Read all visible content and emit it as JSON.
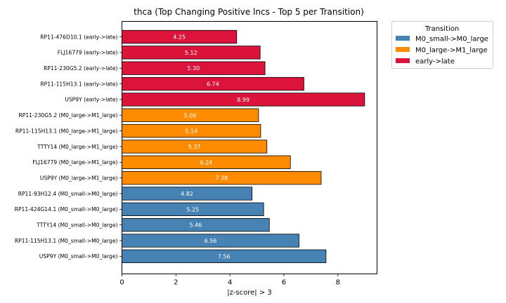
{
  "chart_data": {
    "type": "bar",
    "orientation": "horizontal",
    "title": "thca (Top Changing Positive lncs - Top 5 per Transition)",
    "xlabel": "|z-score| > 3",
    "ylabel": "",
    "xlim": [
      0,
      9.45
    ],
    "xticks": [
      0,
      2,
      4,
      6,
      8
    ],
    "grid": false,
    "legend": {
      "title": "Transition",
      "placement": "outside-top-right",
      "entries": [
        {
          "label": "M0_small->M0_large",
          "color": "#4682b4"
        },
        {
          "label": "M0_large->M1_large",
          "color": "#ff8c00"
        },
        {
          "label": "early->late",
          "color": "#dc143c"
        }
      ]
    },
    "bars": [
      {
        "label": "RP11-476D10.1 (early->late)",
        "value": 4.25,
        "value_label": "4.25",
        "group": 2
      },
      {
        "label": "FLJ16779 (early->late)",
        "value": 5.12,
        "value_label": "5.12",
        "group": 2
      },
      {
        "label": "RP11-230G5.2 (early->late)",
        "value": 5.3,
        "value_label": "5.30",
        "group": 2
      },
      {
        "label": "RP11-115H13.1 (early->late)",
        "value": 6.74,
        "value_label": "6.74",
        "group": 2
      },
      {
        "label": "USP9Y (early->late)",
        "value": 8.99,
        "value_label": "8.99",
        "group": 2
      },
      {
        "label": "RP11-230G5.2 (M0_large->M1_large)",
        "value": 5.06,
        "value_label": "5.06",
        "group": 1
      },
      {
        "label": "RP11-115H13.1 (M0_large->M1_large)",
        "value": 5.14,
        "value_label": "5.14",
        "group": 1
      },
      {
        "label": "TTTY14 (M0_large->M1_large)",
        "value": 5.37,
        "value_label": "5.37",
        "group": 1
      },
      {
        "label": "FLJ16779 (M0_large->M1_large)",
        "value": 6.24,
        "value_label": "6.24",
        "group": 1
      },
      {
        "label": "USP9Y (M0_large->M1_large)",
        "value": 7.38,
        "value_label": "7.38",
        "group": 1
      },
      {
        "label": "RP11-93H12.4 (M0_small->M0_large)",
        "value": 4.82,
        "value_label": "4.82",
        "group": 0
      },
      {
        "label": "RP11-424G14.1 (M0_small->M0_large)",
        "value": 5.25,
        "value_label": "5.25",
        "group": 0
      },
      {
        "label": "TTTY14 (M0_small->M0_large)",
        "value": 5.46,
        "value_label": "5.46",
        "group": 0
      },
      {
        "label": "RP11-115H13.1 (M0_small->M0_large)",
        "value": 6.56,
        "value_label": "6.56",
        "group": 0
      },
      {
        "label": "USP9Y (M0_small->M0_large)",
        "value": 7.56,
        "value_label": "7.56",
        "group": 0
      }
    ]
  }
}
